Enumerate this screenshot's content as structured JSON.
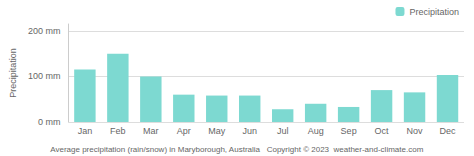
{
  "chart_data": {
    "type": "bar",
    "categories": [
      "Jan",
      "Feb",
      "Mar",
      "Apr",
      "May",
      "Jun",
      "Jul",
      "Aug",
      "Sep",
      "Oct",
      "Nov",
      "Dec"
    ],
    "series": [
      {
        "name": "Precipitation",
        "color": "#7dd9d1",
        "values": [
          115,
          150,
          100,
          60,
          58,
          58,
          28,
          40,
          33,
          70,
          65,
          103
        ]
      }
    ],
    "ylabel": "Precipitation",
    "xlabel": "Average precipitation (rain/snow) in Maryborough, Australia",
    "annotations": [
      "Copyright © 2023  weather-and-climate.com"
    ],
    "ylim": [
      0,
      215
    ],
    "yticks": [
      {
        "value": 0,
        "label": "0 mm"
      },
      {
        "value": 100,
        "label": "100 mm"
      },
      {
        "value": 200,
        "label": "200 mm"
      }
    ],
    "grid": true,
    "legend": "upper right"
  }
}
